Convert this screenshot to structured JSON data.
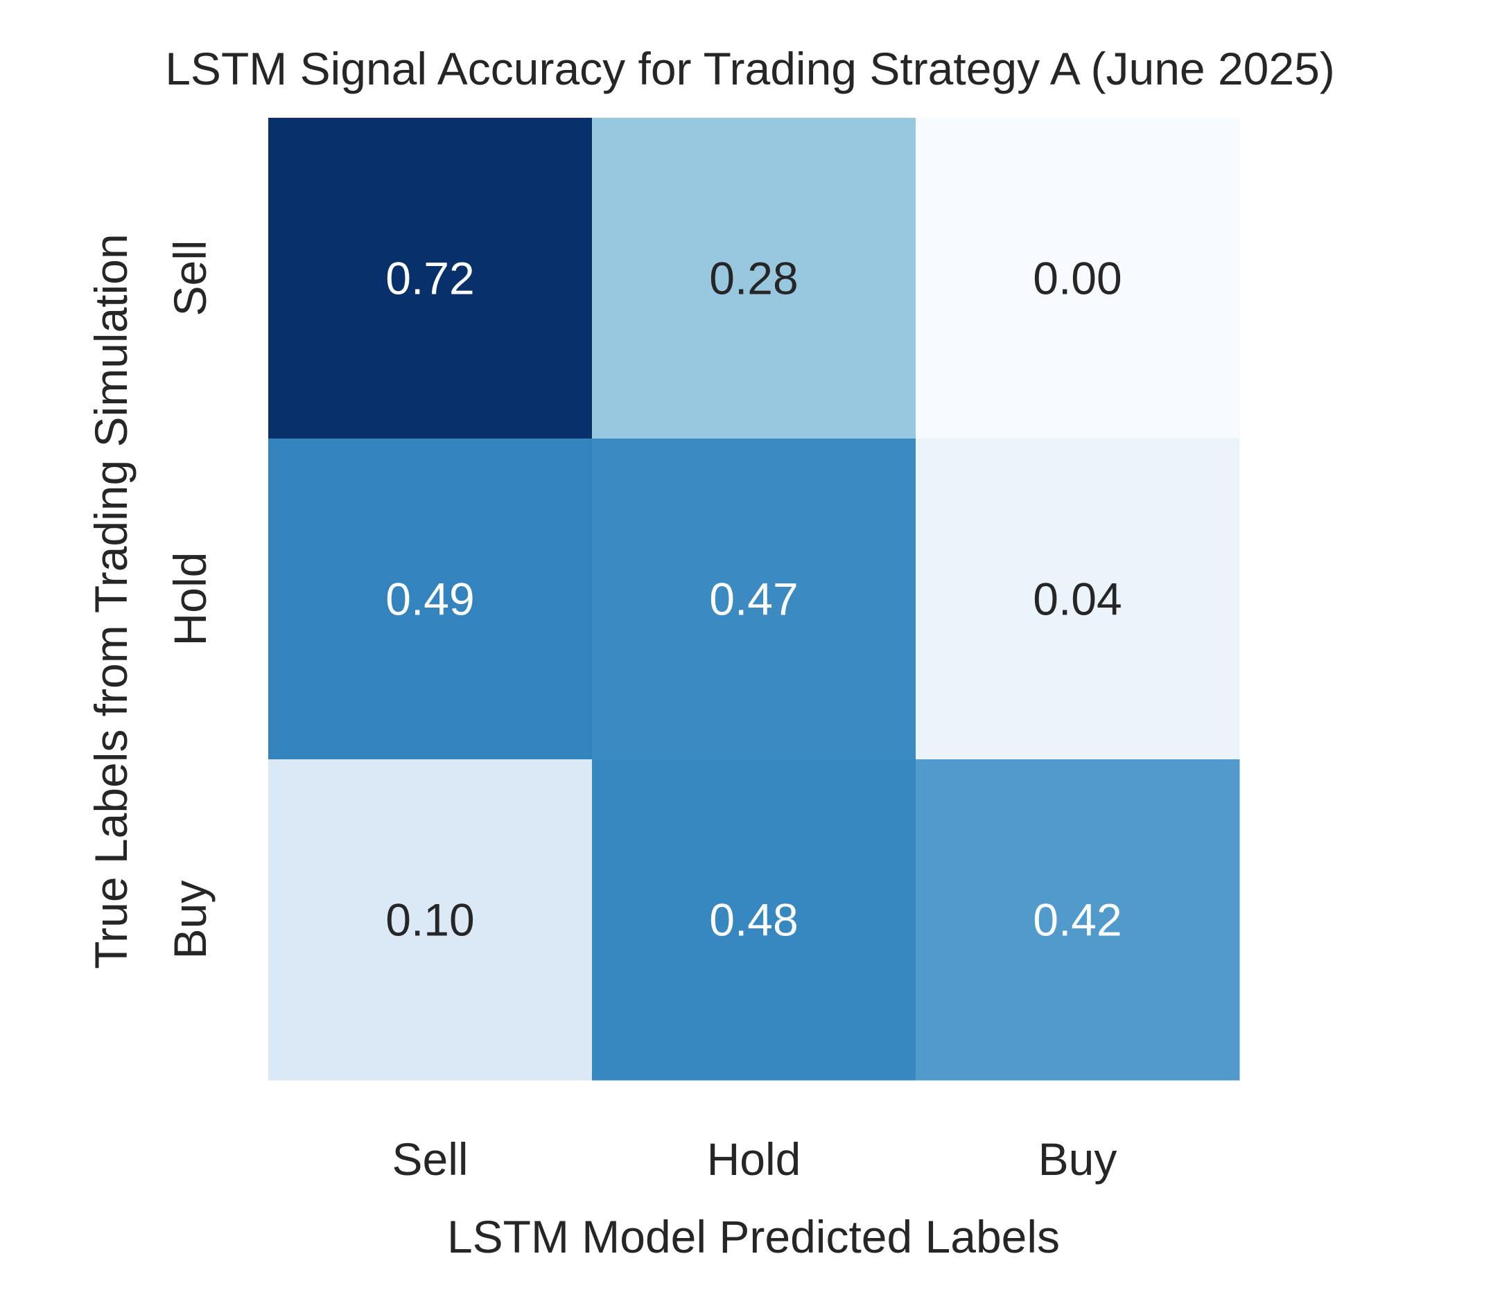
{
  "chart_data": {
    "type": "heatmap",
    "title": "LSTM Signal Accuracy for Trading Strategy A (June 2025)",
    "xlabel": "LSTM Model Predicted Labels",
    "ylabel": "True Labels from Trading Simulation",
    "x_categories": [
      "Sell",
      "Hold",
      "Buy"
    ],
    "y_categories": [
      "Sell",
      "Hold",
      "Buy"
    ],
    "values": [
      [
        0.72,
        0.28,
        0.0
      ],
      [
        0.49,
        0.47,
        0.04
      ],
      [
        0.1,
        0.48,
        0.42
      ]
    ],
    "value_labels": [
      [
        "0.72",
        "0.28",
        "0.00"
      ],
      [
        "0.49",
        "0.47",
        "0.04"
      ],
      [
        "0.10",
        "0.48",
        "0.42"
      ]
    ],
    "colormap": "Blues",
    "vmin": 0.0,
    "vmax": 0.72,
    "colorbar": false,
    "grid": false
  },
  "colors": {
    "text": "#262626",
    "annotation_light": "#ffffff",
    "annotation_dark": "#262626",
    "background": "#ffffff"
  }
}
